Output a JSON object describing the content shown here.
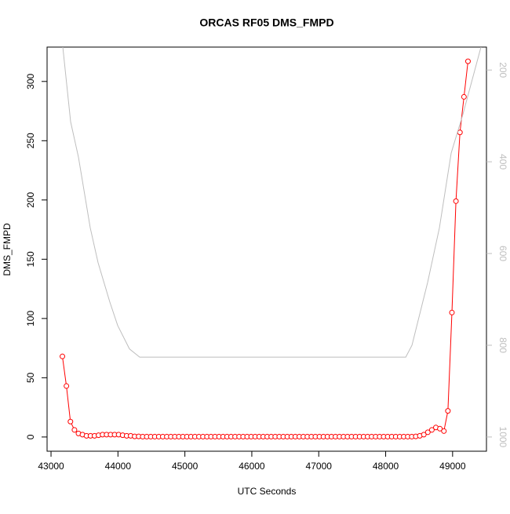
{
  "chart_data": {
    "type": "line",
    "title": "ORCAS RF05 DMS_FMPD",
    "xlabel": "UTC Seconds",
    "ylabel": "DMS_FMPD",
    "xlim": [
      42941,
      49506
    ],
    "xticks": [
      43000,
      44000,
      45000,
      46000,
      47000,
      48000,
      49000
    ],
    "ylim": [
      -12,
      329
    ],
    "yticks": [
      0,
      50,
      100,
      150,
      200,
      250,
      300
    ],
    "y2lim": [
      1031,
      150
    ],
    "y2ticks": [
      200,
      400,
      600,
      800,
      1000
    ],
    "series": [
      {
        "color": "#ff0000",
        "marker": "circle",
        "x": [
          43170,
          43230,
          43290,
          43350,
          43410,
          43470,
          43530,
          43590,
          43650,
          43710,
          43770,
          43830,
          43890,
          43950,
          44010,
          44070,
          44130,
          44190,
          44250,
          44310,
          44370,
          44430,
          44490,
          44550,
          44610,
          44670,
          44730,
          44790,
          44850,
          44910,
          44970,
          45030,
          45090,
          45150,
          45210,
          45270,
          45330,
          45390,
          45450,
          45510,
          45570,
          45630,
          45690,
          45750,
          45810,
          45870,
          45930,
          45990,
          46050,
          46110,
          46170,
          46230,
          46290,
          46350,
          46410,
          46470,
          46530,
          46590,
          46650,
          46710,
          46770,
          46830,
          46890,
          46950,
          47010,
          47070,
          47130,
          47190,
          47250,
          47310,
          47370,
          47430,
          47490,
          47550,
          47610,
          47670,
          47730,
          47790,
          47850,
          47910,
          47970,
          48030,
          48090,
          48150,
          48210,
          48270,
          48330,
          48390,
          48450,
          48510,
          48570,
          48630,
          48690,
          48750,
          48810,
          48870,
          48930,
          48990,
          49050,
          49110,
          49170,
          49230
        ],
        "values": [
          68,
          43,
          13,
          6,
          3,
          2,
          1,
          1,
          1,
          1.5,
          2,
          2,
          2,
          2,
          2,
          1.5,
          1,
          1,
          0.5,
          0.5,
          0.3,
          0.3,
          0.3,
          0.3,
          0.3,
          0.3,
          0.3,
          0.3,
          0.3,
          0.3,
          0.3,
          0.3,
          0.3,
          0.3,
          0.3,
          0.3,
          0.3,
          0.3,
          0.3,
          0.3,
          0.3,
          0.3,
          0.3,
          0.3,
          0.3,
          0.3,
          0.3,
          0.3,
          0.3,
          0.3,
          0.3,
          0.3,
          0.3,
          0.3,
          0.3,
          0.3,
          0.3,
          0.3,
          0.3,
          0.3,
          0.3,
          0.3,
          0.3,
          0.3,
          0.3,
          0.3,
          0.3,
          0.3,
          0.3,
          0.3,
          0.3,
          0.3,
          0.3,
          0.3,
          0.3,
          0.3,
          0.3,
          0.3,
          0.3,
          0.3,
          0.3,
          0.3,
          0.3,
          0.3,
          0.3,
          0.3,
          0.3,
          0.3,
          0.5,
          1,
          2,
          4,
          6,
          8,
          7,
          5,
          22,
          105,
          199,
          257,
          287,
          317
        ]
      },
      {
        "color": "#bebebe",
        "axis": "y2",
        "x": [
          43176,
          43293,
          43410,
          43586,
          43703,
          43879,
          43996,
          44172,
          44325,
          48300,
          48393,
          48627,
          48803,
          48979,
          49155,
          49424
        ],
        "values": [
          150,
          313,
          390,
          544,
          620,
          706,
          757,
          808,
          826,
          826,
          800,
          663,
          544,
          381,
          296,
          150
        ]
      }
    ]
  }
}
